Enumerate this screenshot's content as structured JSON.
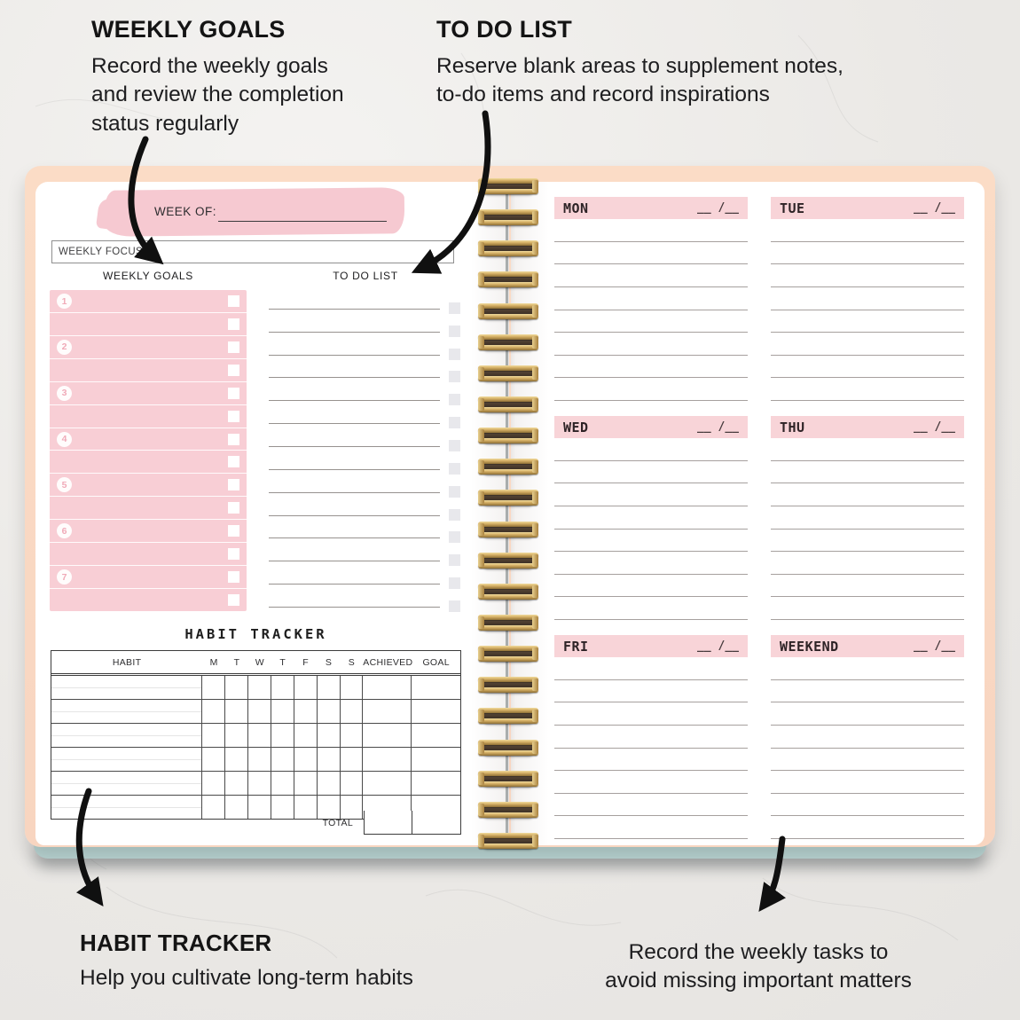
{
  "colors": {
    "pink_panel": "#f8ced5",
    "pink_header": "#f8d4d8",
    "pink_brush": "#f6c9d1",
    "cover_peach": "#fbdcc6",
    "cover_blue": "#bcd8d6",
    "gold_wire": "#d3ad63",
    "ink": "#1c1c1e"
  },
  "annotations": {
    "top_left": {
      "title": "WEEKLY GOALS",
      "body": "Record the weekly goals\nand review the completion\nstatus regularly"
    },
    "top_right": {
      "title": "TO DO LIST",
      "body": "Reserve blank areas to supplement notes,\nto-do items and record inspirations"
    },
    "bottom_left": {
      "title": "HABIT TRACKER",
      "body": "Help you cultivate long-term habits"
    },
    "bottom_right": {
      "body": "Record the weekly tasks to\navoid missing important matters"
    }
  },
  "left_page": {
    "week_of_label": "WEEK OF:",
    "weekly_focus_label": "WEEKLY FOCUS:",
    "goals_header": "WEEKLY GOALS",
    "todo_header": "TO DO LIST",
    "goal_numbers": [
      "1",
      "2",
      "3",
      "4",
      "5",
      "6",
      "7"
    ],
    "todo_line_count": 14,
    "habit_tracker": {
      "title": "HABIT TRACKER",
      "columns": [
        "HABIT",
        "M",
        "T",
        "W",
        "T",
        "F",
        "S",
        "S",
        "ACHIEVED",
        "GOAL"
      ],
      "row_count": 6,
      "total_label": "TOTAL"
    }
  },
  "right_page": {
    "date_placeholder": "__ /__",
    "line_count": 8,
    "days": [
      "MON",
      "TUE",
      "WED",
      "THU",
      "FRI",
      "WEEKEND"
    ]
  }
}
